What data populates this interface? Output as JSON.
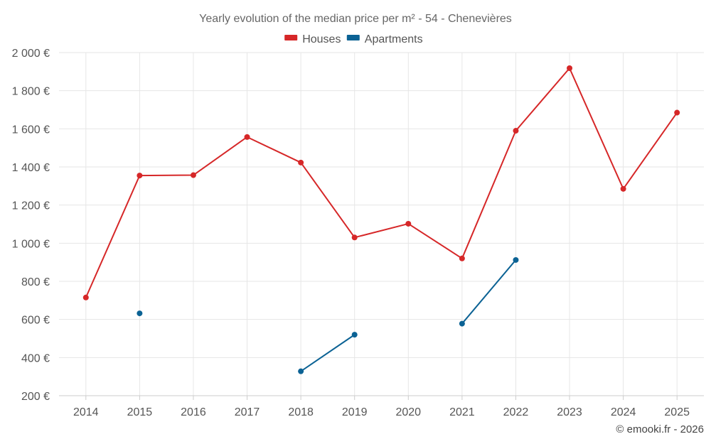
{
  "chart_data": {
    "type": "line",
    "title": "Yearly evolution of the median price per m² - 54 - Chenevières",
    "xlabel": "",
    "ylabel": "",
    "categories": [
      "2014",
      "2015",
      "2016",
      "2017",
      "2018",
      "2019",
      "2020",
      "2021",
      "2022",
      "2023",
      "2024",
      "2025"
    ],
    "ylim": [
      200,
      2000
    ],
    "yticks": [
      200,
      400,
      600,
      800,
      1000,
      1200,
      1400,
      1600,
      1800,
      2000
    ],
    "ytick_labels": [
      "200 €",
      "400 €",
      "600 €",
      "800 €",
      "1 000 €",
      "1 200 €",
      "1 400 €",
      "1 600 €",
      "1 800 €",
      "2 000 €"
    ],
    "grid": true,
    "legend_position": "top-center",
    "series": [
      {
        "name": "Houses",
        "color": "#d62728",
        "values": [
          715,
          1355,
          1357,
          1557,
          1423,
          1030,
          1102,
          920,
          1590,
          1918,
          1285,
          1685
        ]
      },
      {
        "name": "Apartments",
        "color": "#0b6294",
        "values": [
          null,
          632,
          null,
          null,
          328,
          520,
          null,
          578,
          912,
          null,
          null,
          null
        ]
      }
    ],
    "credit": "© emooki.fr - 2026"
  }
}
